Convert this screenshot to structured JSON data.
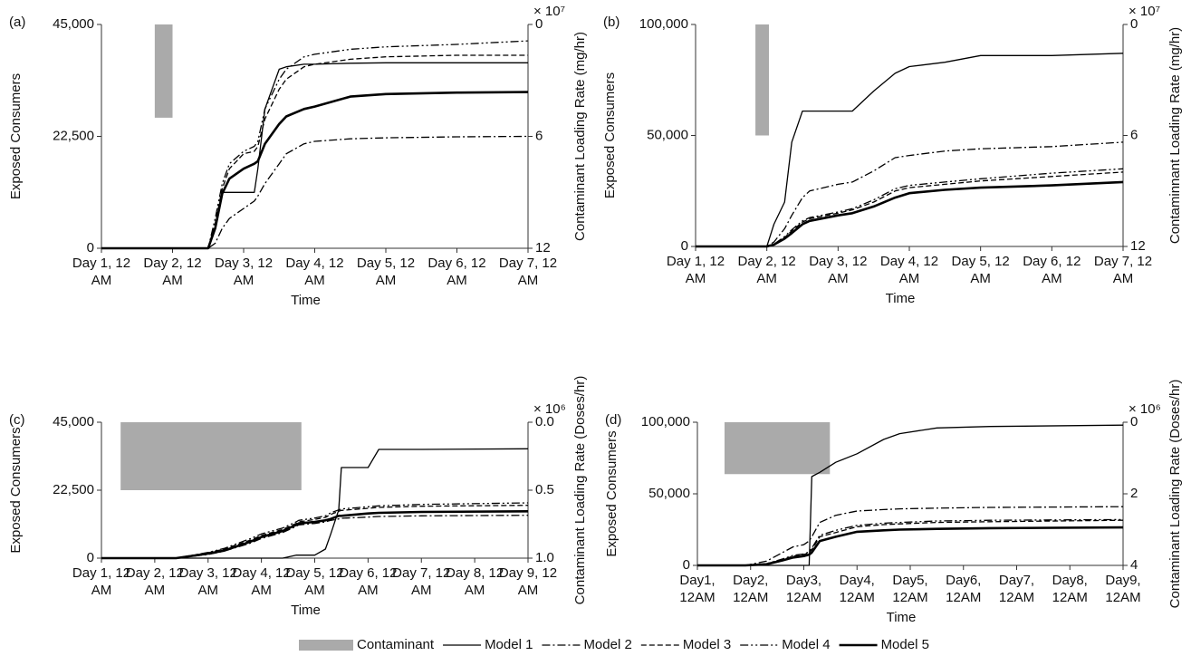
{
  "chart_data": [
    {
      "type": "line",
      "label": "(a)",
      "y_label": "Exposed Consumers",
      "x_label": "Time",
      "y2_label": "Contaminant Loading Rate (mg/hr)",
      "y2_multiplier": "× 10⁷",
      "y2_inverted": true,
      "xlim": [
        0,
        6
      ],
      "xticks": [
        {
          "value": 0,
          "label": "Day 1, 12 AM"
        },
        {
          "value": 1,
          "label": "Day 2, 12 AM"
        },
        {
          "value": 2,
          "label": "Day 3, 12 AM"
        },
        {
          "value": 3,
          "label": "Day 4, 12 AM"
        },
        {
          "value": 4,
          "label": "Day 5, 12 AM"
        },
        {
          "value": 5,
          "label": "Day 6, 12 AM"
        },
        {
          "value": 6,
          "label": "Day 7, 12 AM"
        }
      ],
      "ylim": [
        0,
        45000
      ],
      "yticks": [
        0,
        {
          "value": 22500,
          "label": "22,500"
        },
        {
          "value": 45000,
          "label": "45,000"
        }
      ],
      "y2lim": [
        0,
        12
      ],
      "y2ticks": [
        0,
        6,
        12
      ],
      "contaminant": {
        "name": "Contaminant",
        "color": "#aaaaaa",
        "x": [
          0.75,
          1.0
        ],
        "value": 5,
        "axis": "y2"
      },
      "x": [
        0,
        1.5,
        1.6,
        1.7,
        1.8,
        2.0,
        2.15,
        2.2,
        2.3,
        2.5,
        2.6,
        2.85,
        3.0,
        3.5,
        4,
        5,
        6
      ],
      "series": [
        {
          "name": "Model 1",
          "style": "solid",
          "color": "#000000",
          "values": [
            0,
            0,
            4000,
            11250,
            11250,
            11250,
            11250,
            16000,
            28000,
            36000,
            36500,
            37000,
            37000,
            37200,
            37300,
            37300,
            37300
          ]
        },
        {
          "name": "Model 2",
          "style": "dashdot",
          "color": "#000000",
          "values": [
            0,
            0,
            1000,
            4000,
            6000,
            8000,
            9500,
            10500,
            13000,
            17000,
            19000,
            21000,
            21500,
            22000,
            22200,
            22400,
            22500
          ]
        },
        {
          "name": "Model 3",
          "style": "dashed",
          "color": "#000000",
          "values": [
            0,
            0,
            5000,
            12000,
            16000,
            19000,
            19500,
            20500,
            26000,
            32000,
            34000,
            36500,
            37000,
            38000,
            38500,
            38800,
            38800
          ]
        },
        {
          "name": "Model 4",
          "style": "dashdotdot",
          "color": "#000000",
          "values": [
            0,
            0,
            6000,
            13000,
            17000,
            19500,
            20500,
            21500,
            28000,
            34000,
            36000,
            38500,
            39000,
            40000,
            40500,
            41000,
            41700
          ]
        },
        {
          "name": "Model 5",
          "style": "bold",
          "color": "#000000",
          "values": [
            0,
            0,
            4000,
            11000,
            14000,
            16000,
            17000,
            17500,
            21000,
            25000,
            26500,
            28000,
            28500,
            30500,
            31000,
            31300,
            31400
          ]
        }
      ]
    },
    {
      "type": "line",
      "label": "(b)",
      "y_label": "Exposed Consumers",
      "x_label": "Time",
      "y2_label": "Contaminnant Loading Rate (mg/hr)",
      "y2_multiplier": "× 10⁷",
      "y2_inverted": true,
      "xlim": [
        0,
        6
      ],
      "xticks": [
        {
          "value": 0,
          "label": "Day 1, 12 AM"
        },
        {
          "value": 1,
          "label": "Day 2, 12 AM"
        },
        {
          "value": 2,
          "label": "Day 3, 12 AM"
        },
        {
          "value": 3,
          "label": "Day 4, 12 AM"
        },
        {
          "value": 4,
          "label": "Day 5, 12 AM"
        },
        {
          "value": 5,
          "label": "Day 6, 12 AM"
        },
        {
          "value": 6,
          "label": "Day 7, 12 AM"
        }
      ],
      "ylim": [
        0,
        100000
      ],
      "yticks": [
        0,
        {
          "value": 50000,
          "label": "50,000"
        },
        {
          "value": 100000,
          "label": "100,000"
        }
      ],
      "y2lim": [
        0,
        12
      ],
      "y2ticks": [
        0,
        6,
        12
      ],
      "contaminant": {
        "color": "#aaaaaa",
        "x": [
          0.84,
          1.03
        ],
        "value": 6,
        "axis": "y2"
      },
      "x": [
        0,
        1.0,
        1.1,
        1.25,
        1.35,
        1.5,
        1.6,
        2.0,
        2.2,
        2.5,
        2.8,
        3.0,
        3.5,
        4,
        5,
        6
      ],
      "series": [
        {
          "style": "solid",
          "color": "#000000",
          "values": [
            0,
            0,
            10000,
            20000,
            47000,
            61000,
            61000,
            61000,
            61000,
            70000,
            78000,
            81000,
            83000,
            86000,
            86000,
            87000
          ]
        },
        {
          "style": "dashdot",
          "color": "#000000",
          "values": [
            0,
            0,
            2000,
            8000,
            14000,
            22000,
            25000,
            28000,
            29000,
            34000,
            40000,
            41000,
            43000,
            44000,
            45000,
            47000
          ]
        },
        {
          "style": "dashed",
          "color": "#000000",
          "values": [
            0,
            0,
            1000,
            4000,
            7000,
            11000,
            12500,
            15000,
            16500,
            20000,
            25000,
            26500,
            28000,
            29500,
            31500,
            33500
          ]
        },
        {
          "style": "dashdotdot",
          "color": "#000000",
          "values": [
            0,
            0,
            1000,
            4500,
            7500,
            11500,
            13000,
            15500,
            17000,
            21000,
            26000,
            27500,
            29000,
            30500,
            33000,
            35000
          ]
        },
        {
          "style": "bold",
          "color": "#000000",
          "values": [
            0,
            0,
            800,
            3500,
            6000,
            10000,
            11500,
            14000,
            15000,
            18000,
            22000,
            24000,
            25500,
            26500,
            27500,
            29000
          ]
        }
      ]
    },
    {
      "type": "line",
      "label": "(c)",
      "y_label": "Exposed Consumers",
      "x_label": "Time",
      "y2_label": "Contaminant Loading Rate (Doses/hr)",
      "y2_multiplier": "× 10⁶",
      "y2_inverted": true,
      "xlim": [
        0,
        8
      ],
      "xticks": [
        {
          "value": 0,
          "label": "Day 1, 12 AM"
        },
        {
          "value": 1,
          "label": "Day 2, 12 AM"
        },
        {
          "value": 2,
          "label": "Day 3, 12 AM"
        },
        {
          "value": 3,
          "label": "Day 4, 12 AM"
        },
        {
          "value": 4,
          "label": "Day 5, 12 AM"
        },
        {
          "value": 5,
          "label": "Day 6, 12 AM"
        },
        {
          "value": 6,
          "label": "Day 7, 12 AM"
        },
        {
          "value": 7,
          "label": "Day 8, 12 AM"
        },
        {
          "value": 8,
          "label": "Day 9, 12 AM"
        }
      ],
      "ylim": [
        0,
        45000
      ],
      "yticks": [
        0,
        {
          "value": 22500,
          "label": "22,500"
        },
        {
          "value": 45000,
          "label": "45,000"
        }
      ],
      "y2lim": [
        0,
        1
      ],
      "y2ticks": [
        {
          "value": 0,
          "label": "0.0"
        },
        0.5,
        {
          "value": 1,
          "label": "1.0"
        }
      ],
      "contaminant": {
        "color": "#aaaaaa",
        "x": [
          0.36,
          3.75
        ],
        "value": 0.5,
        "axis": "y2"
      },
      "x": [
        0,
        1.4,
        2.0,
        2.3,
        2.8,
        3.0,
        3.4,
        3.65,
        3.7,
        4.0,
        4.2,
        4.3,
        4.45,
        4.5,
        5.0,
        5.2,
        6,
        8
      ],
      "series": [
        {
          "style": "solid",
          "color": "#000000",
          "values": [
            0,
            0,
            0,
            0,
            0,
            0,
            0,
            1000,
            1000,
            1000,
            3000,
            8000,
            16000,
            30000,
            30000,
            36000,
            36000,
            36200
          ]
        },
        {
          "style": "dashdot",
          "color": "#000000",
          "values": [
            0,
            0,
            1200,
            2300,
            5000,
            6500,
            8500,
            10500,
            11000,
            11500,
            12000,
            12500,
            13000,
            13200,
            13600,
            13800,
            14000,
            14200
          ]
        },
        {
          "style": "dashed",
          "color": "#000000",
          "values": [
            0,
            0,
            1800,
            3000,
            6000,
            7500,
            9500,
            11500,
            12000,
            12800,
            13500,
            14500,
            15500,
            15800,
            16500,
            16800,
            17200,
            17500
          ]
        },
        {
          "style": "dashdotdot",
          "color": "#000000",
          "values": [
            0,
            0,
            1900,
            3200,
            6500,
            8000,
            10000,
            12000,
            12500,
            13300,
            14000,
            15000,
            16000,
            16300,
            17000,
            17300,
            17800,
            18300
          ]
        },
        {
          "style": "bold",
          "color": "#000000",
          "values": [
            0,
            0,
            1500,
            2500,
            5500,
            7000,
            9000,
            11000,
            11500,
            12000,
            12500,
            13000,
            14000,
            14000,
            14800,
            15000,
            15300,
            15500
          ]
        }
      ]
    },
    {
      "type": "line",
      "label": "(d)",
      "y_label": "Exposed Consumers",
      "x_label": "Time",
      "y2_label": "Contaminant Loading Rate (Doses/hr)",
      "y2_multiplier": "× 10⁶",
      "y2_inverted": true,
      "xlim": [
        0,
        8
      ],
      "xticks": [
        {
          "value": 0,
          "label": "Day1, 12AM"
        },
        {
          "value": 1,
          "label": "Day2, 12AM"
        },
        {
          "value": 2,
          "label": "Day3, 12AM"
        },
        {
          "value": 3,
          "label": "Day4, 12AM"
        },
        {
          "value": 4,
          "label": "Day5, 12AM"
        },
        {
          "value": 5,
          "label": "Day6, 12AM"
        },
        {
          "value": 6,
          "label": "Day7, 12AM"
        },
        {
          "value": 7,
          "label": "Day8, 12AM"
        },
        {
          "value": 8,
          "label": "Day9, 12AM"
        }
      ],
      "ylim": [
        0,
        100000
      ],
      "yticks": [
        0,
        {
          "value": 50000,
          "label": "50,000"
        },
        {
          "value": 100000,
          "label": "100,000"
        }
      ],
      "y2lim": [
        0,
        4
      ],
      "y2ticks": [
        0,
        2,
        4
      ],
      "contaminant": {
        "color": "#aaaaaa",
        "x": [
          0.51,
          2.49
        ],
        "value": 1.45,
        "axis": "y2"
      },
      "x": [
        0,
        0.9,
        1.3,
        1.6,
        1.8,
        2.0,
        2.1,
        2.15,
        2.3,
        2.6,
        3.0,
        3.5,
        3.8,
        4.5,
        5.5,
        8
      ],
      "series": [
        {
          "style": "solid",
          "color": "#000000",
          "values": [
            0,
            0,
            0,
            0,
            0,
            0,
            0,
            62000,
            65000,
            72000,
            78000,
            88000,
            92000,
            96000,
            97000,
            98000
          ]
        },
        {
          "style": "dashdot",
          "color": "#000000",
          "values": [
            0,
            0,
            3000,
            9000,
            13000,
            14500,
            17000,
            20000,
            30000,
            35000,
            38000,
            39000,
            39500,
            40000,
            40500,
            41000
          ]
        },
        {
          "style": "dashed",
          "color": "#000000",
          "values": [
            0,
            0,
            1000,
            4000,
            6500,
            7500,
            9000,
            11000,
            20000,
            23000,
            27000,
            28500,
            29000,
            30000,
            30500,
            31500
          ]
        },
        {
          "style": "dashdotdot",
          "color": "#000000",
          "values": [
            0,
            0,
            1200,
            4500,
            7000,
            8000,
            9500,
            12000,
            21000,
            24500,
            28000,
            29500,
            30000,
            31000,
            31500,
            32000
          ]
        },
        {
          "style": "bold",
          "color": "#000000",
          "values": [
            0,
            0,
            800,
            3500,
            5500,
            6500,
            7500,
            9000,
            17000,
            20000,
            23500,
            24500,
            25000,
            25500,
            26000,
            26500
          ]
        }
      ]
    }
  ]
}
